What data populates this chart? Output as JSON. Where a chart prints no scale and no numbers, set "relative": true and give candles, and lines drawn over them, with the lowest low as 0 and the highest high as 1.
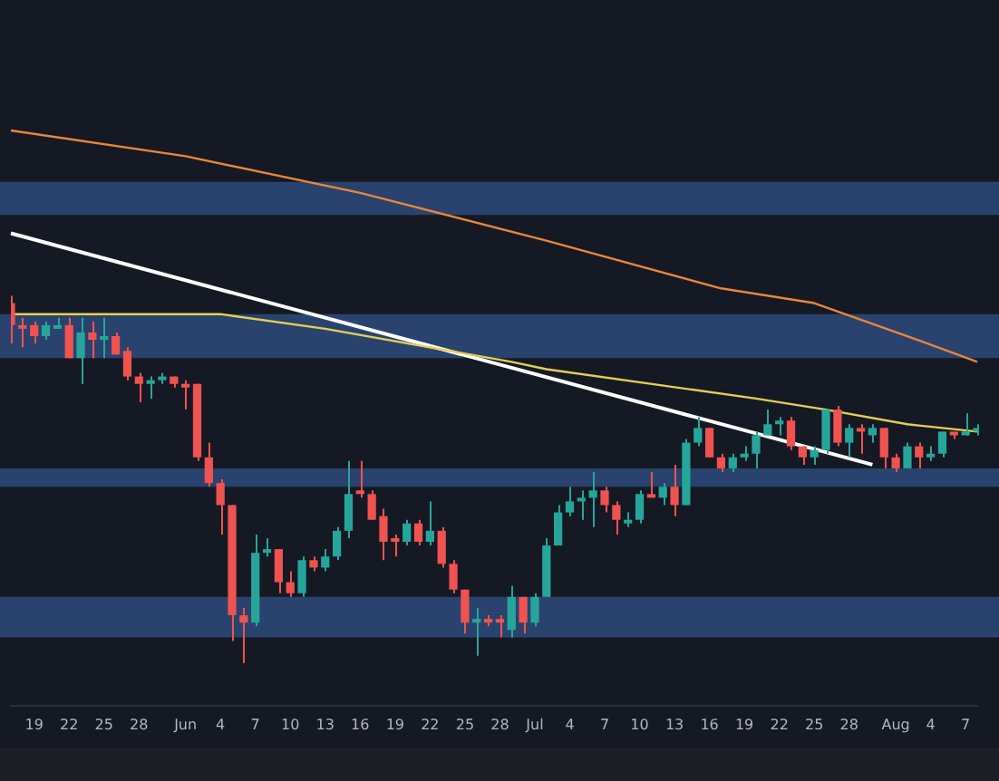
{
  "chart_data": {
    "type": "candlestick",
    "relative": true,
    "legend": false,
    "categories": [
      null,
      null,
      "19",
      null,
      null,
      "22",
      null,
      null,
      "25",
      null,
      null,
      "28",
      null,
      null,
      null,
      "Jun",
      null,
      null,
      "4",
      null,
      null,
      "7",
      null,
      null,
      "10",
      null,
      null,
      "13",
      null,
      null,
      "16",
      null,
      null,
      "19",
      null,
      null,
      "22",
      null,
      null,
      "25",
      null,
      null,
      "28",
      null,
      null,
      "Jul",
      null,
      null,
      "4",
      null,
      null,
      "7",
      null,
      null,
      "10",
      null,
      null,
      "13",
      null,
      null,
      "16",
      null,
      null,
      "19",
      null,
      null,
      "22",
      null,
      null,
      "25",
      null,
      null,
      "28",
      null,
      null,
      null,
      "Aug",
      null,
      null,
      "4",
      null,
      null,
      "7",
      null
    ],
    "ohlc": [
      [
        0.98,
        1,
        0.87,
        0.92
      ],
      [
        0.92,
        0.94,
        0.86,
        0.91
      ],
      [
        0.92,
        0.93,
        0.87,
        0.89
      ],
      [
        0.89,
        0.93,
        0.88,
        0.92
      ],
      [
        0.91,
        0.94,
        0.91,
        0.92
      ],
      [
        0.92,
        0.94,
        0.83,
        0.83
      ],
      [
        0.83,
        0.94,
        0.76,
        0.9
      ],
      [
        0.9,
        0.93,
        0.83,
        0.88
      ],
      [
        0.88,
        0.94,
        0.83,
        0.89
      ],
      [
        0.89,
        0.9,
        0.84,
        0.84
      ],
      [
        0.85,
        0.86,
        0.77,
        0.78
      ],
      [
        0.78,
        0.79,
        0.71,
        0.76
      ],
      [
        0.76,
        0.78,
        0.72,
        0.77
      ],
      [
        0.77,
        0.79,
        0.76,
        0.78
      ],
      [
        0.78,
        0.78,
        0.75,
        0.76
      ],
      [
        0.76,
        0.77,
        0.69,
        0.75
      ],
      [
        0.76,
        0.76,
        0.55,
        0.56
      ],
      [
        0.56,
        0.6,
        0.48,
        0.49
      ],
      [
        0.49,
        0.5,
        0.35,
        0.43
      ],
      [
        0.43,
        0.43,
        0.06,
        0.13
      ],
      [
        0.13,
        0.15,
        0,
        0.11
      ],
      [
        0.11,
        0.35,
        0.1,
        0.3
      ],
      [
        0.3,
        0.34,
        0.29,
        0.31
      ],
      [
        0.31,
        0.31,
        0.19,
        0.22
      ],
      [
        0.22,
        0.25,
        0.18,
        0.19
      ],
      [
        0.19,
        0.29,
        0.18,
        0.28
      ],
      [
        0.28,
        0.29,
        0.25,
        0.26
      ],
      [
        0.26,
        0.31,
        0.25,
        0.29
      ],
      [
        0.29,
        0.37,
        0.28,
        0.36
      ],
      [
        0.36,
        0.55,
        0.34,
        0.46
      ],
      [
        0.47,
        0.55,
        0.45,
        0.46
      ],
      [
        0.46,
        0.47,
        0.39,
        0.39
      ],
      [
        0.4,
        0.42,
        0.28,
        0.33
      ],
      [
        0.34,
        0.35,
        0.29,
        0.33
      ],
      [
        0.33,
        0.39,
        0.32,
        0.38
      ],
      [
        0.38,
        0.39,
        0.32,
        0.33
      ],
      [
        0.33,
        0.44,
        0.32,
        0.36
      ],
      [
        0.36,
        0.37,
        0.26,
        0.27
      ],
      [
        0.27,
        0.28,
        0.19,
        0.2
      ],
      [
        0.2,
        0.2,
        0.08,
        0.11
      ],
      [
        0.11,
        0.15,
        0.02,
        0.12
      ],
      [
        0.12,
        0.13,
        0.1,
        0.11
      ],
      [
        0.12,
        0.13,
        0.07,
        0.11
      ],
      [
        0.09,
        0.21,
        0.07,
        0.18
      ],
      [
        0.18,
        0.18,
        0.08,
        0.11
      ],
      [
        0.11,
        0.19,
        0.1,
        0.18
      ],
      [
        0.18,
        0.34,
        0.18,
        0.32
      ],
      [
        0.32,
        0.43,
        0.32,
        0.41
      ],
      [
        0.41,
        0.48,
        0.4,
        0.44
      ],
      [
        0.44,
        0.47,
        0.39,
        0.45
      ],
      [
        0.45,
        0.52,
        0.37,
        0.47
      ],
      [
        0.47,
        0.48,
        0.41,
        0.43
      ],
      [
        0.43,
        0.44,
        0.35,
        0.39
      ],
      [
        0.38,
        0.41,
        0.37,
        0.39
      ],
      [
        0.39,
        0.47,
        0.38,
        0.46
      ],
      [
        0.46,
        0.52,
        0.45,
        0.45
      ],
      [
        0.45,
        0.49,
        0.43,
        0.48
      ],
      [
        0.48,
        0.54,
        0.4,
        0.43
      ],
      [
        0.43,
        0.61,
        0.43,
        0.6
      ],
      [
        0.6,
        0.67,
        0.59,
        0.64
      ],
      [
        0.64,
        0.64,
        0.56,
        0.56
      ],
      [
        0.56,
        0.57,
        0.52,
        0.53
      ],
      [
        0.53,
        0.57,
        0.52,
        0.56
      ],
      [
        0.56,
        0.59,
        0.55,
        0.57
      ],
      [
        0.57,
        0.63,
        0.53,
        0.62
      ],
      [
        0.62,
        0.69,
        0.62,
        0.65
      ],
      [
        0.65,
        0.67,
        0.62,
        0.66
      ],
      [
        0.66,
        0.67,
        0.58,
        0.59
      ],
      [
        0.59,
        0.59,
        0.54,
        0.56
      ],
      [
        0.56,
        0.59,
        0.54,
        0.58
      ],
      [
        0.58,
        0.69,
        0.57,
        0.69
      ],
      [
        0.69,
        0.7,
        0.59,
        0.6
      ],
      [
        0.6,
        0.65,
        0.56,
        0.64
      ],
      [
        0.64,
        0.65,
        0.57,
        0.63
      ],
      [
        0.62,
        0.65,
        0.6,
        0.64
      ],
      [
        0.64,
        0.64,
        0.53,
        0.56
      ],
      [
        0.56,
        0.57,
        0.52,
        0.53
      ],
      [
        0.53,
        0.6,
        0.53,
        0.59
      ],
      [
        0.59,
        0.6,
        0.53,
        0.56
      ],
      [
        0.56,
        0.59,
        0.55,
        0.57
      ],
      [
        0.57,
        0.63,
        0.56,
        0.63
      ],
      [
        0.63,
        0.63,
        0.61,
        0.62
      ],
      [
        0.62,
        0.68,
        0.62,
        0.63
      ],
      [
        0.63,
        0.65,
        0.62,
        0.64
      ]
    ],
    "colors": [
      "#ef5350",
      "#ef5350",
      "#ef5350",
      "#26a69a",
      "#26a69a",
      "#ef5350",
      "#26a69a",
      "#ef5350",
      "#26a69a",
      "#ef5350",
      "#ef5350",
      "#ef5350",
      "#26a69a",
      "#26a69a",
      "#ef5350",
      "#ef5350",
      "#ef5350",
      "#ef5350",
      "#ef5350",
      "#ef5350",
      "#ef5350",
      "#26a69a",
      "#26a69a",
      "#ef5350",
      "#ef5350",
      "#26a69a",
      "#ef5350",
      "#26a69a",
      "#26a69a",
      "#26a69a",
      "#ef5350",
      "#ef5350",
      "#ef5350",
      "#ef5350",
      "#26a69a",
      "#ef5350",
      "#26a69a",
      "#ef5350",
      "#ef5350",
      "#ef5350",
      "#26a69a",
      "#ef5350",
      "#ef5350",
      "#26a69a",
      "#ef5350",
      "#26a69a",
      "#26a69a",
      "#26a69a",
      "#26a69a",
      "#26a69a",
      "#26a69a",
      "#ef5350",
      "#ef5350",
      "#26a69a",
      "#26a69a",
      "#ef5350",
      "#26a69a",
      "#ef5350",
      "#26a69a",
      "#26a69a",
      "#ef5350",
      "#ef5350",
      "#26a69a",
      "#26a69a",
      "#26a69a",
      "#26a69a",
      "#26a69a",
      "#ef5350",
      "#ef5350",
      "#26a69a",
      "#26a69a",
      "#ef5350",
      "#26a69a",
      "#ef5350",
      "#26a69a",
      "#ef5350",
      "#ef5350",
      "#26a69a",
      "#ef5350",
      "#26a69a",
      "#26a69a",
      "#ef5350",
      "#26a69a",
      "#26a69a"
    ],
    "series": [
      {
        "type": "line",
        "color": "#e8873a",
        "values": [
          1.45,
          null,
          null,
          null,
          null,
          null,
          null,
          null,
          null,
          null,
          null,
          null,
          null,
          null,
          null,
          1.38,
          null,
          null,
          null,
          null,
          null,
          null,
          null,
          null,
          null,
          null,
          null,
          null,
          null,
          null,
          1.28,
          null,
          null,
          null,
          null,
          null,
          null,
          null,
          null,
          null,
          null,
          null,
          null,
          null,
          null,
          null,
          1.15,
          null,
          null,
          null,
          null,
          null,
          null,
          null,
          null,
          null,
          null,
          null,
          null,
          null,
          null,
          1.02,
          null,
          null,
          null,
          null,
          null,
          null,
          null,
          0.98,
          null,
          null,
          null,
          null,
          null,
          null,
          null,
          0.89,
          null,
          null,
          null,
          null,
          null,
          0.82
        ]
      },
      {
        "type": "line",
        "color": "#e3cf55",
        "values": [
          0.95,
          null,
          null,
          null,
          null,
          null,
          null,
          null,
          null,
          null,
          null,
          null,
          null,
          null,
          null,
          null,
          null,
          null,
          0.95,
          null,
          null,
          null,
          null,
          null,
          null,
          null,
          null,
          0.91,
          null,
          null,
          null,
          null,
          null,
          null,
          null,
          null,
          null,
          null,
          null,
          null,
          null,
          null,
          null,
          0.82,
          null,
          null,
          0.8,
          null,
          null,
          null,
          null,
          null,
          null,
          null,
          null,
          null,
          null,
          null,
          null,
          null,
          null,
          null,
          null,
          null,
          0.72,
          null,
          null,
          null,
          null,
          null,
          0.69,
          null,
          null,
          null,
          null,
          null,
          null,
          0.65,
          null,
          null,
          null,
          null,
          null,
          0.63
        ]
      },
      {
        "type": "line",
        "color": "#ffffff",
        "values": [
          1.17,
          null,
          null,
          null,
          null,
          null,
          null,
          null,
          null,
          null,
          null,
          null,
          null,
          null,
          null,
          null,
          null,
          null,
          null,
          null,
          null,
          null,
          null,
          null,
          null,
          null,
          null,
          null,
          null,
          null,
          null,
          null,
          null,
          null,
          null,
          null,
          null,
          null,
          null,
          null,
          null,
          null,
          null,
          null,
          null,
          null,
          null,
          null,
          null,
          null,
          null,
          null,
          null,
          null,
          null,
          null,
          null,
          null,
          null,
          null,
          null,
          null,
          null,
          null,
          null,
          null,
          null,
          null,
          null,
          null,
          null,
          null,
          null,
          null,
          0.54,
          null,
          null,
          null,
          null,
          null,
          null,
          null,
          null,
          null
        ]
      }
    ],
    "bands": [
      {
        "axis": "y",
        "from": 1.22,
        "to": 1.31,
        "color": "#2d4b7b"
      },
      {
        "axis": "y",
        "from": 0.83,
        "to": 0.95,
        "color": "#2d4b7b"
      },
      {
        "axis": "y",
        "from": 0.48,
        "to": 0.53,
        "color": "#2d4b7b"
      },
      {
        "axis": "y",
        "from": 0.07,
        "to": 0.18,
        "color": "#2d4b7b"
      }
    ]
  }
}
